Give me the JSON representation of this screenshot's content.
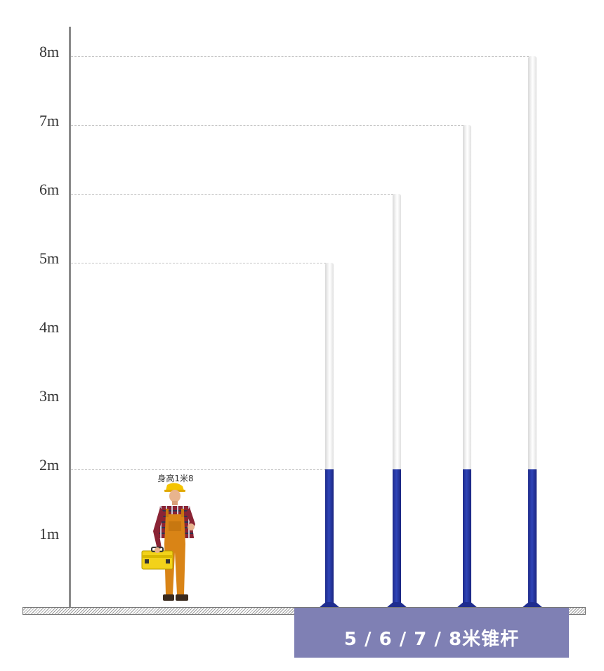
{
  "axis": {
    "unit": "m",
    "ticks": [
      {
        "value": 1,
        "label": "1m"
      },
      {
        "value": 2,
        "label": "2m"
      },
      {
        "value": 3,
        "label": "3m"
      },
      {
        "value": 4,
        "label": "4m"
      },
      {
        "value": 5,
        "label": "5m"
      },
      {
        "value": 6,
        "label": "6m"
      },
      {
        "value": 7,
        "label": "7m"
      },
      {
        "value": 8,
        "label": "8m"
      }
    ]
  },
  "person": {
    "label": "身高1米8",
    "height_m": 1.8
  },
  "poles": [
    {
      "height_m": 5,
      "base_height_m": 2
    },
    {
      "height_m": 6,
      "base_height_m": 2
    },
    {
      "height_m": 7,
      "base_height_m": 2
    },
    {
      "height_m": 8,
      "base_height_m": 2
    }
  ],
  "colors": {
    "pole_base": "#2a3aa8",
    "pole_top": "#f4f4f4",
    "caption_bg": "#7f80b4"
  },
  "caption": "5 / 6 / 7 / 8米锥杆"
}
